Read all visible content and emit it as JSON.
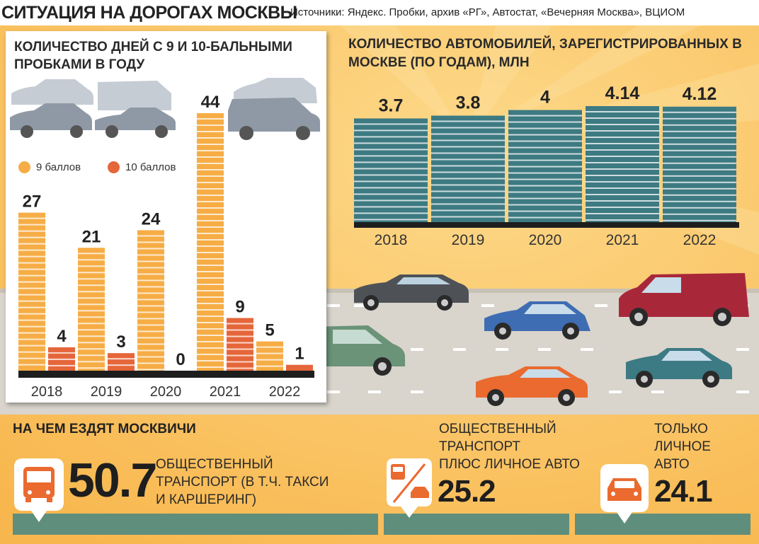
{
  "header": {
    "title": "СИТУАЦИЯ НА ДОРОГАХ МОСКВЫ",
    "sources": "Источники: Яндекс. Пробки, архив «РГ», Автостат, «Вечерняя Москва», ВЦИОМ"
  },
  "colors": {
    "background": "#fbc563",
    "nine_points": "#f6ad45",
    "ten_points": "#e5663a",
    "registered_bars": "#3d7a82",
    "stat_bar": "#5f8e7d",
    "road": "#d9d4cc"
  },
  "chart_data": [
    {
      "type": "bar",
      "title": "КОЛИЧЕСТВО ДНЕЙ С 9 И 10-БАЛЬНЫМИ ПРОБКАМИ В ГОДУ",
      "categories": [
        "2018",
        "2019",
        "2020",
        "2021",
        "2022"
      ],
      "series": [
        {
          "name": "9 баллов",
          "values": [
            27,
            21,
            24,
            44,
            5
          ]
        },
        {
          "name": "10 баллов",
          "values": [
            4,
            3,
            0,
            9,
            1
          ]
        }
      ],
      "ylim": [
        0,
        44
      ],
      "legend": "top-left",
      "grid": false
    },
    {
      "type": "bar",
      "title": "КОЛИЧЕСТВО АВТОМОБИЛЕЙ, ЗАРЕГИСТРИРОВАННЫХ В МОСКВЕ (ПО ГОДАМ), МЛН",
      "categories": [
        "2018",
        "2019",
        "2020",
        "2021",
        "2022"
      ],
      "values": [
        3.7,
        3.8,
        4,
        4.14,
        4.12
      ],
      "value_labels": [
        "3.7",
        "3.8",
        "4",
        "4.14",
        "4.12"
      ],
      "ylim": [
        0,
        4.14
      ],
      "grid": false
    }
  ],
  "modes": {
    "title": "НА ЧЕМ ЕЗДЯТ МОСКВИЧИ",
    "items": [
      {
        "value": "50.7",
        "label_lines": [
          "ОБЩЕСТВЕННЫЙ",
          "ТРАНСПОРТ (В Т.Ч. ТАКСИ",
          "И КАРШЕРИНГ)"
        ],
        "icon": "bus-icon"
      },
      {
        "value": "25.2",
        "label_lines": [
          "ОБЩЕСТВЕННЫЙ",
          "ТРАНСПОРТ",
          "ПЛЮС ЛИЧНОЕ АВТО"
        ],
        "icon": "bus-and-car-icon"
      },
      {
        "value": "24.1",
        "label_lines": [
          "ТОЛЬКО",
          "ЛИЧНОЕ",
          "АВТО"
        ],
        "icon": "car-icon"
      }
    ]
  }
}
